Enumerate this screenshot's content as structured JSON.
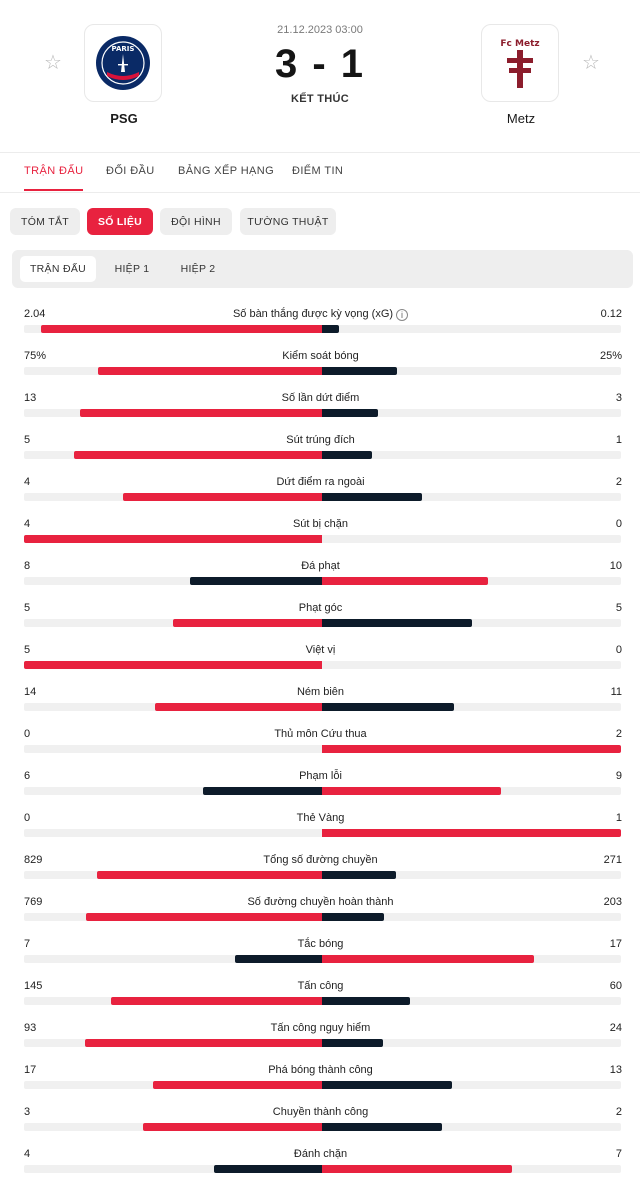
{
  "match": {
    "datetime": "21.12.2023 03:00",
    "score": "3 - 1",
    "status": "KẾT THÚC",
    "home": {
      "name": "PSG",
      "logo_text": "PARIS"
    },
    "away": {
      "name": "Metz",
      "logo_text": "Fc Metz"
    }
  },
  "main_tabs": [
    "TRẬN ĐẤU",
    "ĐỐI ĐẦU",
    "BẢNG XẾP HẠNG",
    "ĐIỂM TIN"
  ],
  "sub_tabs": [
    "TÓM TẮT",
    "SỐ LIỆU",
    "ĐỘI HÌNH",
    "TƯỜNG THUẬT"
  ],
  "periods": [
    "TRẬN ĐẤU",
    "HIỆP 1",
    "HIỆP 2"
  ],
  "icons": {
    "favorite": "star-icon",
    "info": "info-icon"
  },
  "colors": {
    "accent": "#e8223f",
    "dark": "#0d1b2a"
  },
  "stats": [
    {
      "label": "Số bàn thắng được kỳ vọng (xG)",
      "home": "2.04",
      "away": "0.12",
      "h": 2.04,
      "a": 0.12,
      "info": true
    },
    {
      "label": "Kiểm soát bóng",
      "home": "75%",
      "away": "25%",
      "h": 75,
      "a": 25
    },
    {
      "label": "Số lần dứt điểm",
      "home": "13",
      "away": "3",
      "h": 13,
      "a": 3
    },
    {
      "label": "Sút trúng đích",
      "home": "5",
      "away": "1",
      "h": 5,
      "a": 1
    },
    {
      "label": "Dứt điểm ra ngoài",
      "home": "4",
      "away": "2",
      "h": 4,
      "a": 2
    },
    {
      "label": "Sút bị chặn",
      "home": "4",
      "away": "0",
      "h": 4,
      "a": 0
    },
    {
      "label": "Đá phạt",
      "home": "8",
      "away": "10",
      "h": 8,
      "a": 10
    },
    {
      "label": "Phạt góc",
      "home": "5",
      "away": "5",
      "h": 5,
      "a": 5
    },
    {
      "label": "Việt vị",
      "home": "5",
      "away": "0",
      "h": 5,
      "a": 0
    },
    {
      "label": "Ném biên",
      "home": "14",
      "away": "11",
      "h": 14,
      "a": 11
    },
    {
      "label": "Thủ môn Cứu thua",
      "home": "0",
      "away": "2",
      "h": 0,
      "a": 2
    },
    {
      "label": "Phạm lỗi",
      "home": "6",
      "away": "9",
      "h": 6,
      "a": 9
    },
    {
      "label": "Thẻ Vàng",
      "home": "0",
      "away": "1",
      "h": 0,
      "a": 1
    },
    {
      "label": "Tổng số đường chuyền",
      "home": "829",
      "away": "271",
      "h": 829,
      "a": 271
    },
    {
      "label": "Số đường chuyền hoàn thành",
      "home": "769",
      "away": "203",
      "h": 769,
      "a": 203
    },
    {
      "label": "Tắc bóng",
      "home": "7",
      "away": "17",
      "h": 7,
      "a": 17
    },
    {
      "label": "Tấn công",
      "home": "145",
      "away": "60",
      "h": 145,
      "a": 60
    },
    {
      "label": "Tấn công nguy hiểm",
      "home": "93",
      "away": "24",
      "h": 93,
      "a": 24
    },
    {
      "label": "Phá bóng thành công",
      "home": "17",
      "away": "13",
      "h": 17,
      "a": 13
    },
    {
      "label": "Chuyền thành công",
      "home": "3",
      "away": "2",
      "h": 3,
      "a": 2
    },
    {
      "label": "Đánh chặn",
      "home": "4",
      "away": "7",
      "h": 4,
      "a": 7
    }
  ]
}
